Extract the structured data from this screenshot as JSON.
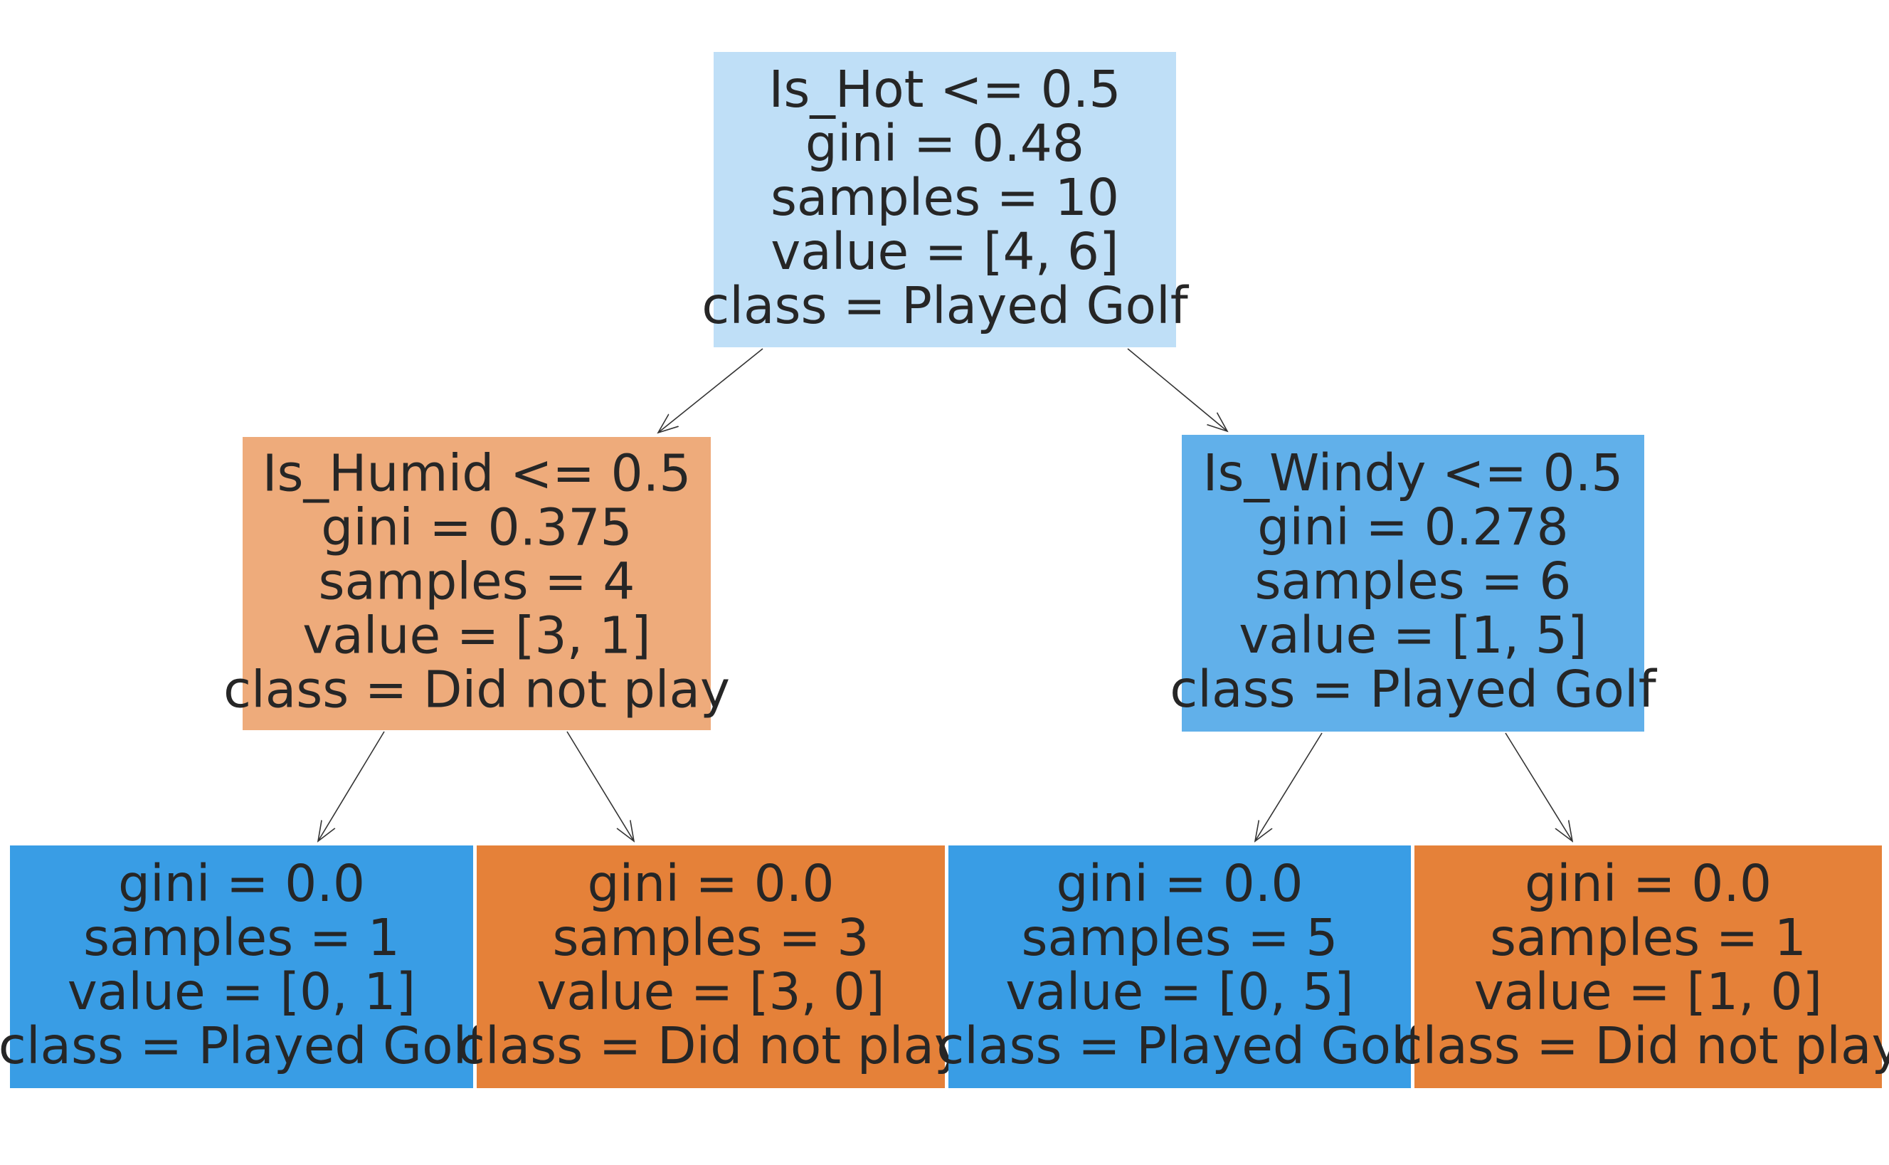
{
  "colors": {
    "played_golf_light": "#bfdff7",
    "played_golf_medium": "#61b0ea",
    "played_golf_pure": "#399de5",
    "did_not_play_light": "#eeab7b",
    "did_not_play_pure": "#e58139",
    "text": "#262626",
    "edge": "#333333"
  },
  "tree": {
    "nodes": [
      {
        "id": "root",
        "color_key": "played_golf_light",
        "lines": [
          "Is_Hot <= 0.5",
          "gini = 0.48",
          "samples = 10",
          "value = [4, 6]",
          "class = Played Golf"
        ]
      },
      {
        "id": "left",
        "color_key": "did_not_play_light",
        "lines": [
          "Is_Humid <= 0.5",
          "gini = 0.375",
          "samples = 4",
          "value = [3, 1]",
          "class = Did not play"
        ]
      },
      {
        "id": "right",
        "color_key": "played_golf_medium",
        "lines": [
          "Is_Windy <= 0.5",
          "gini = 0.278",
          "samples = 6",
          "value = [1, 5]",
          "class = Played Golf"
        ]
      },
      {
        "id": "left-left",
        "color_key": "played_golf_pure",
        "lines": [
          "gini = 0.0",
          "samples = 1",
          "value = [0, 1]",
          "class = Played Golf"
        ]
      },
      {
        "id": "left-right",
        "color_key": "did_not_play_pure",
        "lines": [
          "gini = 0.0",
          "samples = 3",
          "value = [3, 0]",
          "class = Did not play"
        ]
      },
      {
        "id": "right-left",
        "color_key": "played_golf_pure",
        "lines": [
          "gini = 0.0",
          "samples = 5",
          "value = [0, 5]",
          "class = Played Golf"
        ]
      },
      {
        "id": "right-right",
        "color_key": "did_not_play_pure",
        "lines": [
          "gini = 0.0",
          "samples = 1",
          "value = [1, 0]",
          "class = Did not play"
        ]
      }
    ],
    "edges": [
      {
        "from": "root",
        "to": "left"
      },
      {
        "from": "root",
        "to": "right"
      },
      {
        "from": "left",
        "to": "left-left"
      },
      {
        "from": "left",
        "to": "left-right"
      },
      {
        "from": "right",
        "to": "right-left"
      },
      {
        "from": "right",
        "to": "right-right"
      }
    ]
  }
}
